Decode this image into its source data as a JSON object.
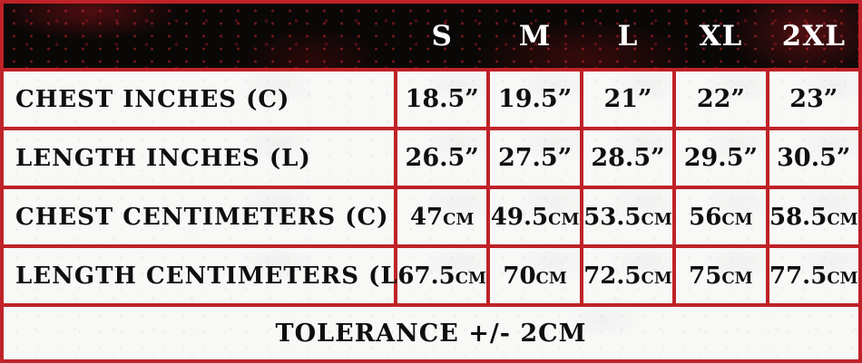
{
  "chart_data": {
    "type": "table",
    "columns": [
      "",
      "S",
      "M",
      "L",
      "XL",
      "2XL"
    ],
    "rows": [
      [
        "CHEST INCHES (C)",
        "18.5”",
        "19.5”",
        "21”",
        "22”",
        "23”"
      ],
      [
        "LENGTH INCHES (L)",
        "26.5”",
        "27.5”",
        "28.5”",
        "29.5”",
        "30.5”"
      ],
      [
        "CHEST CENTIMETERS (C)",
        "47cm",
        "49.5cm",
        "53.5cm",
        "56cm",
        "58.5cm"
      ],
      [
        "LENGTH CENTIMETERS (L)",
        "67.5cm",
        "70cm",
        "72.5cm",
        "75cm",
        "77.5cm"
      ]
    ],
    "footer": "TOLERANCE +/- 2CM"
  },
  "colors": {
    "border_red": "#bf2228",
    "header_bg": "#0a0707",
    "header_text": "#ffffff",
    "cell_bg": "#f8f8f7",
    "body_text": "#100f0f",
    "splatter_red": "#c11f26"
  }
}
